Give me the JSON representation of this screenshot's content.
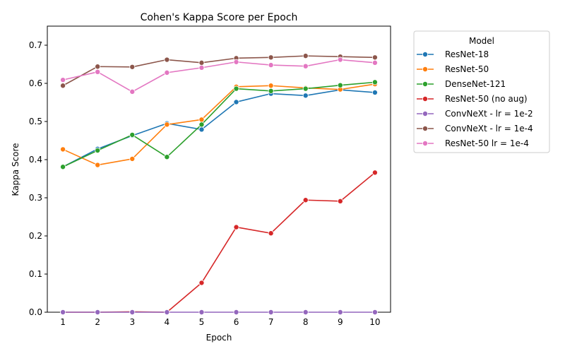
{
  "chart_data": {
    "type": "line",
    "title": "Cohen's Kappa Score per Epoch",
    "xlabel": "Epoch",
    "ylabel": "Kappa Score",
    "x": [
      1,
      2,
      3,
      4,
      5,
      6,
      7,
      8,
      9,
      10
    ],
    "xlim": [
      0.55,
      10.45
    ],
    "ylim": [
      0,
      0.75
    ],
    "yticks": [
      "0.0",
      "0.1",
      "0.2",
      "0.3",
      "0.4",
      "0.5",
      "0.6",
      "0.7"
    ],
    "xticks": [
      "1",
      "2",
      "3",
      "4",
      "5",
      "6",
      "7",
      "8",
      "9",
      "10"
    ],
    "grid": false,
    "legend": {
      "title": "Model",
      "placement": "outside-right"
    },
    "series": [
      {
        "name": "ResNet-18",
        "color": "#1f77b4",
        "values": [
          0.381,
          0.428,
          0.463,
          0.495,
          0.479,
          0.551,
          0.573,
          0.568,
          0.583,
          0.576
        ]
      },
      {
        "name": "ResNet-50",
        "color": "#ff7f0e",
        "values": [
          0.427,
          0.386,
          0.402,
          0.492,
          0.505,
          0.591,
          0.594,
          0.588,
          0.584,
          0.598
        ]
      },
      {
        "name": "DenseNet-121",
        "color": "#2ca02c",
        "values": [
          0.381,
          0.424,
          0.465,
          0.407,
          0.492,
          0.586,
          0.58,
          0.586,
          0.595,
          0.603
        ]
      },
      {
        "name": "ResNet-50 (no aug)",
        "color": "#d62728",
        "values": [
          0.0,
          0.0,
          0.001,
          0.0,
          0.077,
          0.223,
          0.207,
          0.294,
          0.291,
          0.366
        ]
      },
      {
        "name": "ConvNeXt - lr = 1e-2",
        "color": "#9467bd",
        "values": [
          0.0,
          0.0,
          0.0,
          0.0,
          0.0,
          0.0,
          0.0,
          0.0,
          0.0,
          0.0
        ]
      },
      {
        "name": "ConvNeXt - lr = 1e-4",
        "color": "#8c564b",
        "values": [
          0.594,
          0.644,
          0.643,
          0.662,
          0.654,
          0.666,
          0.668,
          0.672,
          0.67,
          0.668
        ]
      },
      {
        "name": "ResNet-50 lr = 1e-4",
        "color": "#e377c2",
        "values": [
          0.609,
          0.63,
          0.578,
          0.628,
          0.641,
          0.656,
          0.648,
          0.645,
          0.662,
          0.654
        ]
      }
    ]
  }
}
